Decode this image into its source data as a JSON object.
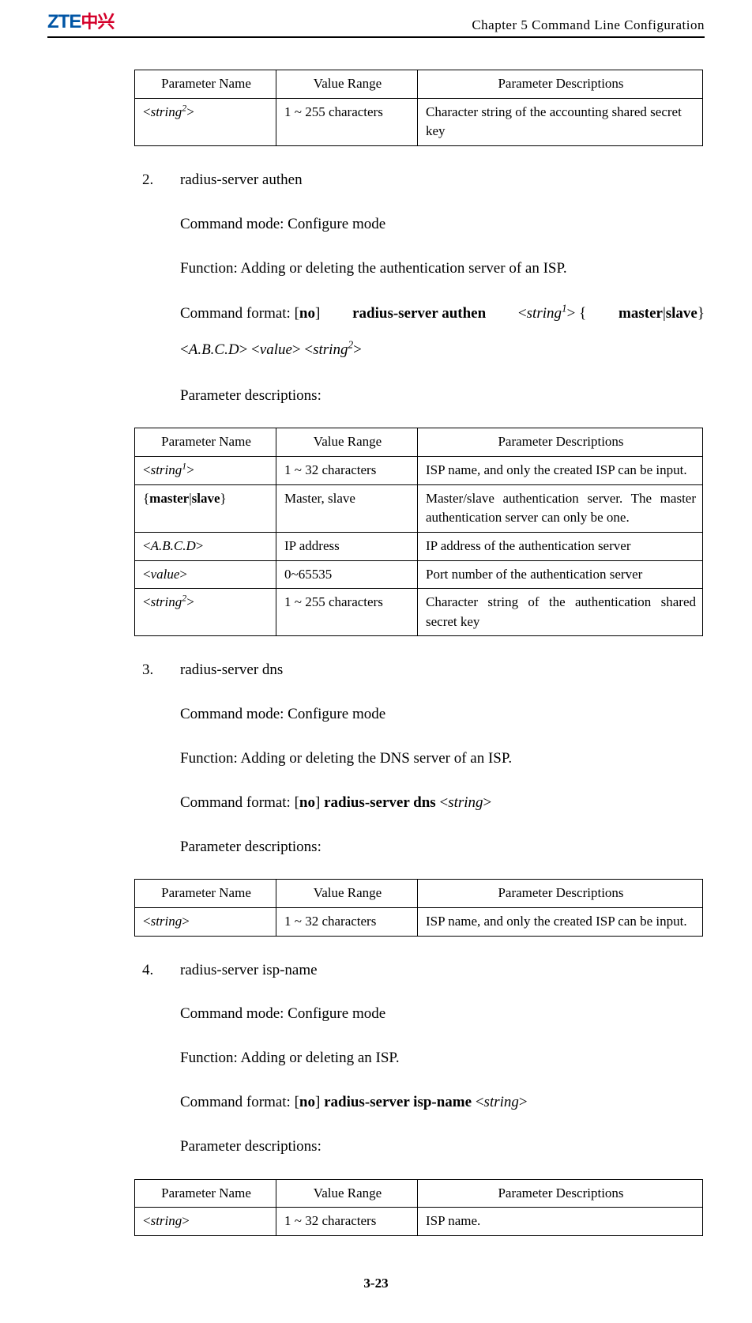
{
  "header": {
    "logo_zte": "ZTE",
    "logo_cn": "中兴",
    "chapter": "Chapter 5 Command Line Configuration"
  },
  "table1": {
    "h1": "Parameter Name",
    "h2": "Value Range",
    "h3": "Parameter Descriptions",
    "r1c1_pre": "<",
    "r1c1_mid": "string",
    "r1c1_sup": "2",
    "r1c1_post": ">",
    "r1c2": "1 ~ 255 characters",
    "r1c3": "Character string of the accounting shared secret key"
  },
  "sec2": {
    "num": "2.",
    "title": "radius-server authen",
    "mode": "Command mode: Configure mode",
    "func": "Function: Adding or deleting the authentication server of an ISP.",
    "fmt_lead": "Command  format:  [",
    "fmt_no": "no",
    "fmt_a": "]  ",
    "fmt_cmd": "radius-server  authen",
    "fmt_b": "  <",
    "fmt_s1": "string",
    "fmt_s1sup": "1",
    "fmt_c": ">  {",
    "fmt_ms": "master",
    "fmt_pipe": "|",
    "fmt_sl": "slave",
    "fmt_d": "}",
    "fmt_line2a": "<",
    "fmt_abcd": "A.B.C.D",
    "fmt_line2b": "> <",
    "fmt_val": "value",
    "fmt_line2c": "> <",
    "fmt_s2": "string",
    "fmt_s2sup": "2",
    "fmt_line2d": ">",
    "pdesc": "Parameter descriptions:"
  },
  "table2": {
    "h1": "Parameter Name",
    "h2": "Value Range",
    "h3": "Parameter Descriptions",
    "r1c1a": "<",
    "r1c1b": "string",
    "r1c1sup": "1",
    "r1c1c": ">",
    "r1c2": "1 ~ 32 characters",
    "r1c3": "ISP name, and only the created ISP can be input.",
    "r2c1a": "{",
    "r2c1b": "master",
    "r2c1p": "|",
    "r2c1c": "slave",
    "r2c1d": "}",
    "r2c2": "Master, slave",
    "r2c3": "Master/slave authentication server. The master authentication server can only be one.",
    "r3c1a": "<",
    "r3c1b": "A.B.C.D",
    "r3c1c": ">",
    "r3c2": "IP address",
    "r3c3": "IP address of the authentication server",
    "r4c1a": "<",
    "r4c1b": "value",
    "r4c1c": ">",
    "r4c2": "0~65535",
    "r4c3": "Port number of the authentication server",
    "r5c1a": "<",
    "r5c1b": "string",
    "r5c1sup": "2",
    "r5c1c": ">",
    "r5c2": "1 ~ 255 characters",
    "r5c3": "Character string of the authentication shared secret key"
  },
  "sec3": {
    "num": "3.",
    "title": "radius-server dns",
    "mode": "Command mode: Configure mode",
    "func": "Function: Adding or deleting the DNS server of an ISP.",
    "fmt_lead": "Command format: [",
    "fmt_no": "no",
    "fmt_a": "] ",
    "fmt_cmd": "radius-server dns",
    "fmt_b": " <",
    "fmt_s": "string",
    "fmt_c": ">",
    "pdesc": "Parameter descriptions:"
  },
  "table3": {
    "h1": "Parameter Name",
    "h2": "Value Range",
    "h3": "Parameter Descriptions",
    "r1c1a": "<",
    "r1c1b": "string",
    "r1c1c": ">",
    "r1c2": "1 ~ 32 characters",
    "r1c3": "ISP name, and only the created ISP can be input."
  },
  "sec4": {
    "num": "4.",
    "title": "radius-server isp-name",
    "mode": "Command mode: Configure mode",
    "func": "Function: Adding or deleting an ISP.",
    "fmt_lead": "Command format: [",
    "fmt_no": "no",
    "fmt_a": "] ",
    "fmt_cmd": "radius-server isp-name",
    "fmt_b": " <",
    "fmt_s": "string",
    "fmt_c": ">",
    "pdesc": "Parameter descriptions:"
  },
  "table4": {
    "h1": "Parameter Name",
    "h2": "Value Range",
    "h3": "Parameter Descriptions",
    "r1c1a": "<",
    "r1c1b": "string",
    "r1c1c": ">",
    "r1c2": "1 ~ 32 characters",
    "r1c3": "ISP name."
  },
  "footer": "3-23"
}
